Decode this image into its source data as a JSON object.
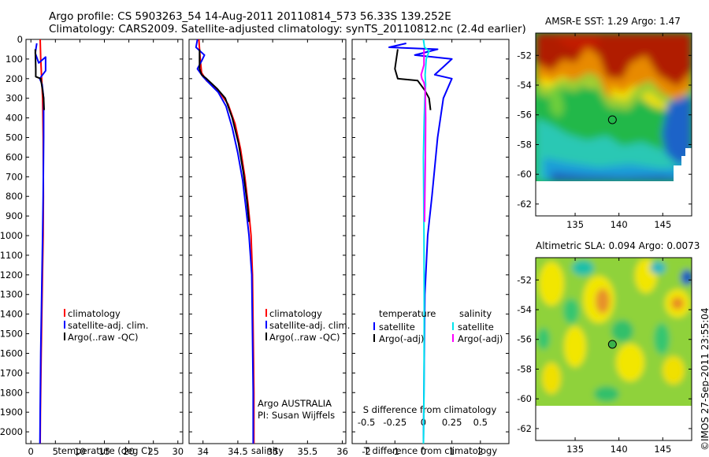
{
  "header": {
    "line1": "Argo profile: CS 5903263_54 14-Aug-2011 20110814_573 56.33S 139.252E",
    "line2": "Climatology: CARS2009. Satellite-adjusted climatology: synTS_20110812.nc (2.4d earlier)"
  },
  "colors": {
    "climatology": "#ff0000",
    "satellite": "#0000ff",
    "argo": "#000000",
    "salinity_satellite": "#00e5ee",
    "salinity_argo": "#ff00ff"
  },
  "chart_data": [
    {
      "id": "temperature",
      "type": "line",
      "xlabel": "temperature (deg C)",
      "xlim": [
        -1,
        31
      ],
      "xticks": [
        0,
        5,
        10,
        15,
        20,
        25,
        30
      ],
      "xtick_labels": [
        "0",
        "5",
        "10",
        "15",
        "20",
        "25",
        "30"
      ],
      "ylim": [
        0,
        2060
      ],
      "yticks": [
        0,
        100,
        200,
        300,
        400,
        500,
        600,
        700,
        800,
        900,
        1000,
        1100,
        1200,
        1300,
        1400,
        1500,
        1600,
        1700,
        1800,
        1900,
        2000
      ],
      "ytick_labels": [
        "0",
        "100",
        "200",
        "300",
        "400",
        "500",
        "600",
        "700",
        "800",
        "900",
        "1000",
        "1100",
        "1200",
        "1300",
        "1400",
        "1500",
        "1600",
        "1700",
        "1800",
        "1900",
        "2000"
      ],
      "legend": [
        "climatology",
        "satellite-adj. clim.",
        "Argo(..raw -QC)"
      ],
      "series": [
        {
          "name": "climatology",
          "color": "#ff0000",
          "points": [
            [
              1.9,
              0
            ],
            [
              2.0,
              100
            ],
            [
              2.2,
              200
            ],
            [
              2.4,
              300
            ],
            [
              2.5,
              500
            ],
            [
              2.55,
              800
            ],
            [
              2.5,
              1000
            ],
            [
              2.3,
              1300
            ],
            [
              2.1,
              1600
            ],
            [
              1.95,
              1900
            ],
            [
              1.9,
              2060
            ]
          ]
        },
        {
          "name": "satellite-adj. clim.",
          "color": "#0000ff",
          "points": [
            [
              1.2,
              20
            ],
            [
              0.9,
              70
            ],
            [
              1.6,
              120
            ],
            [
              3.0,
              90
            ],
            [
              3.0,
              160
            ],
            [
              1.8,
              200
            ],
            [
              2.3,
              230
            ],
            [
              2.6,
              300
            ],
            [
              2.6,
              500
            ],
            [
              2.5,
              800
            ],
            [
              2.4,
              1000
            ],
            [
              2.2,
              1300
            ],
            [
              2.0,
              1600
            ],
            [
              1.9,
              1900
            ],
            [
              1.85,
              2060
            ]
          ]
        },
        {
          "name": "Argo(..raw -QC)",
          "color": "#000000",
          "points": [
            [
              0.9,
              50
            ],
            [
              1.0,
              150
            ],
            [
              1.0,
              190
            ],
            [
              2.0,
              200
            ],
            [
              2.4,
              260
            ],
            [
              2.6,
              300
            ],
            [
              2.7,
              360
            ]
          ]
        }
      ]
    },
    {
      "id": "salinity",
      "type": "line",
      "xlabel": "salinity",
      "xlim": [
        33.8,
        36.05
      ],
      "xticks": [
        34,
        34.5,
        35,
        35.5,
        36
      ],
      "xtick_labels": [
        "34",
        "34.5",
        "35",
        "35.5",
        "36"
      ],
      "ylim": [
        0,
        2060
      ],
      "yticks": [
        0,
        100,
        200,
        300,
        400,
        500,
        600,
        700,
        800,
        900,
        1000,
        1100,
        1200,
        1300,
        1400,
        1500,
        1600,
        1700,
        1800,
        1900,
        2000
      ],
      "legend": [
        "climatology",
        "satellite-adj. clim.",
        "Argo(..raw -QC)"
      ],
      "annotation": [
        "Argo AUSTRALIA",
        "PI: Susan Wijffels"
      ],
      "series": [
        {
          "name": "climatology",
          "color": "#ff0000",
          "points": [
            [
              33.94,
              0
            ],
            [
              33.96,
              100
            ],
            [
              33.98,
              170
            ],
            [
              34.05,
              210
            ],
            [
              34.22,
              260
            ],
            [
              34.36,
              330
            ],
            [
              34.46,
              430
            ],
            [
              34.54,
              560
            ],
            [
              34.6,
              700
            ],
            [
              34.65,
              850
            ],
            [
              34.69,
              1000
            ],
            [
              34.71,
              1200
            ],
            [
              34.72,
              1500
            ],
            [
              34.73,
              1800
            ],
            [
              34.73,
              2060
            ]
          ]
        },
        {
          "name": "satellite-adj. clim.",
          "color": "#0000ff",
          "points": [
            [
              33.92,
              0
            ],
            [
              33.9,
              40
            ],
            [
              34.02,
              80
            ],
            [
              33.98,
              110
            ],
            [
              33.92,
              150
            ],
            [
              34.0,
              190
            ],
            [
              34.08,
              220
            ],
            [
              34.22,
              270
            ],
            [
              34.33,
              340
            ],
            [
              34.42,
              450
            ],
            [
              34.5,
              580
            ],
            [
              34.57,
              720
            ],
            [
              34.62,
              870
            ],
            [
              34.66,
              1000
            ],
            [
              34.7,
              1200
            ],
            [
              34.71,
              1500
            ],
            [
              34.72,
              1800
            ],
            [
              34.72,
              2060
            ]
          ]
        },
        {
          "name": "Argo(..raw -QC)",
          "color": "#000000",
          "points": [
            [
              33.95,
              50
            ],
            [
              33.95,
              150
            ],
            [
              33.98,
              180
            ],
            [
              34.05,
              200
            ],
            [
              34.2,
              250
            ],
            [
              34.32,
              300
            ],
            [
              34.42,
              400
            ],
            [
              34.51,
              530
            ],
            [
              34.58,
              680
            ],
            [
              34.63,
              820
            ],
            [
              34.66,
              930
            ]
          ]
        }
      ]
    },
    {
      "id": "difference",
      "type": "line",
      "xlabel": "T difference from climatology",
      "xlim": [
        -2.5,
        3
      ],
      "xticks": [
        -2,
        -1,
        0,
        1,
        2
      ],
      "xtick_labels": [
        "-2",
        "-1",
        "0",
        "1",
        "2"
      ],
      "secondary_xlabel": "S difference from climatology",
      "secondary_xticks": [
        -0.5,
        -0.25,
        0,
        0.25,
        0.5
      ],
      "secondary_xtick_labels": [
        "-0.5",
        "-0.25",
        "0",
        "0.25",
        "0.5"
      ],
      "secondary_xlim": [
        -0.625,
        0.75
      ],
      "ylim": [
        0,
        2060
      ],
      "yticks": [
        0,
        100,
        200,
        300,
        400,
        500,
        600,
        700,
        800,
        900,
        1000,
        1100,
        1200,
        1300,
        1400,
        1500,
        1600,
        1700,
        1800,
        1900,
        2000
      ],
      "legend_headers": [
        "temperature",
        "salinity"
      ],
      "legend_temperature": [
        "satellite",
        "Argo(-adj)"
      ],
      "legend_salinity": [
        "satellite",
        "Argo(-adj)"
      ],
      "series": [
        {
          "name": "temperature satellite",
          "color": "#0000ff",
          "points": [
            [
              -0.6,
              20
            ],
            [
              -1.2,
              40
            ],
            [
              0.5,
              50
            ],
            [
              -0.3,
              80
            ],
            [
              1.0,
              100
            ],
            [
              0.7,
              140
            ],
            [
              0.4,
              180
            ],
            [
              1.0,
              200
            ],
            [
              0.7,
              300
            ],
            [
              0.5,
              500
            ],
            [
              0.3,
              800
            ],
            [
              0.15,
              1000
            ],
            [
              0.05,
              1300
            ],
            [
              0.0,
              2060
            ]
          ]
        },
        {
          "name": "temperature Argo(-adj)",
          "color": "#000000",
          "points": [
            [
              -0.9,
              50
            ],
            [
              -1.0,
              150
            ],
            [
              -0.9,
              200
            ],
            [
              -0.2,
              210
            ],
            [
              0.05,
              260
            ],
            [
              0.2,
              300
            ],
            [
              0.25,
              360
            ]
          ]
        },
        {
          "name": "salinity satellite",
          "color": "#00e5ee",
          "points": [
            [
              0.0,
              0
            ],
            [
              0.04,
              40
            ],
            [
              0.2,
              60
            ],
            [
              0.1,
              100
            ],
            [
              0.06,
              180
            ],
            [
              0.08,
              230
            ],
            [
              0.05,
              300
            ],
            [
              0.03,
              400
            ],
            [
              0.0,
              600
            ],
            [
              0.02,
              1000
            ],
            [
              0.03,
              1400
            ],
            [
              0.02,
              1800
            ],
            [
              0.0,
              2060
            ]
          ]
        },
        {
          "name": "salinity Argo(-adj)",
          "color": "#ff00ff",
          "points": [
            [
              0.02,
              50
            ],
            [
              0.02,
              130
            ],
            [
              -0.08,
              180
            ],
            [
              -0.05,
              200
            ],
            [
              0.02,
              220
            ],
            [
              0.06,
              250
            ],
            [
              0.07,
              300
            ],
            [
              0.08,
              400
            ],
            [
              0.07,
              600
            ],
            [
              0.05,
              800
            ],
            [
              0.04,
              930
            ]
          ]
        }
      ]
    }
  ],
  "maps": [
    {
      "id": "sst",
      "title": "AMSR-E SST: 1.29 Argo: 1.47",
      "xticks": [
        135,
        140,
        145
      ],
      "xtick_labels": [
        "135",
        "140",
        "145"
      ],
      "xlim": [
        130.5,
        148.3
      ],
      "yticks": [
        -52,
        -54,
        -56,
        -58,
        -60,
        -62
      ],
      "ytick_labels": [
        "-52",
        "-54",
        "-56",
        "-58",
        "-60",
        "-62"
      ],
      "ylim": [
        -62.8,
        -50.5
      ],
      "data_extent_lat": [
        -60.1,
        -50.5
      ],
      "float_lon": 139.25,
      "float_lat": -56.33
    },
    {
      "id": "sla",
      "title": "Altimetric SLA: 0.094 Argo: 0.0073",
      "xticks": [
        135,
        140,
        145
      ],
      "xtick_labels": [
        "135",
        "140",
        "145"
      ],
      "xlim": [
        130.5,
        148.3
      ],
      "yticks": [
        -52,
        -54,
        -56,
        -58,
        -60,
        -62
      ],
      "ytick_labels": [
        "-52",
        "-54",
        "-56",
        "-58",
        "-60",
        "-62"
      ],
      "ylim": [
        -62.8,
        -50.5
      ],
      "data_extent_lat": [
        -60.1,
        -50.5
      ],
      "float_lon": 139.25,
      "float_lat": -56.33
    }
  ],
  "watermark": "©IMOS 27-Sep-2011 23:55:04"
}
